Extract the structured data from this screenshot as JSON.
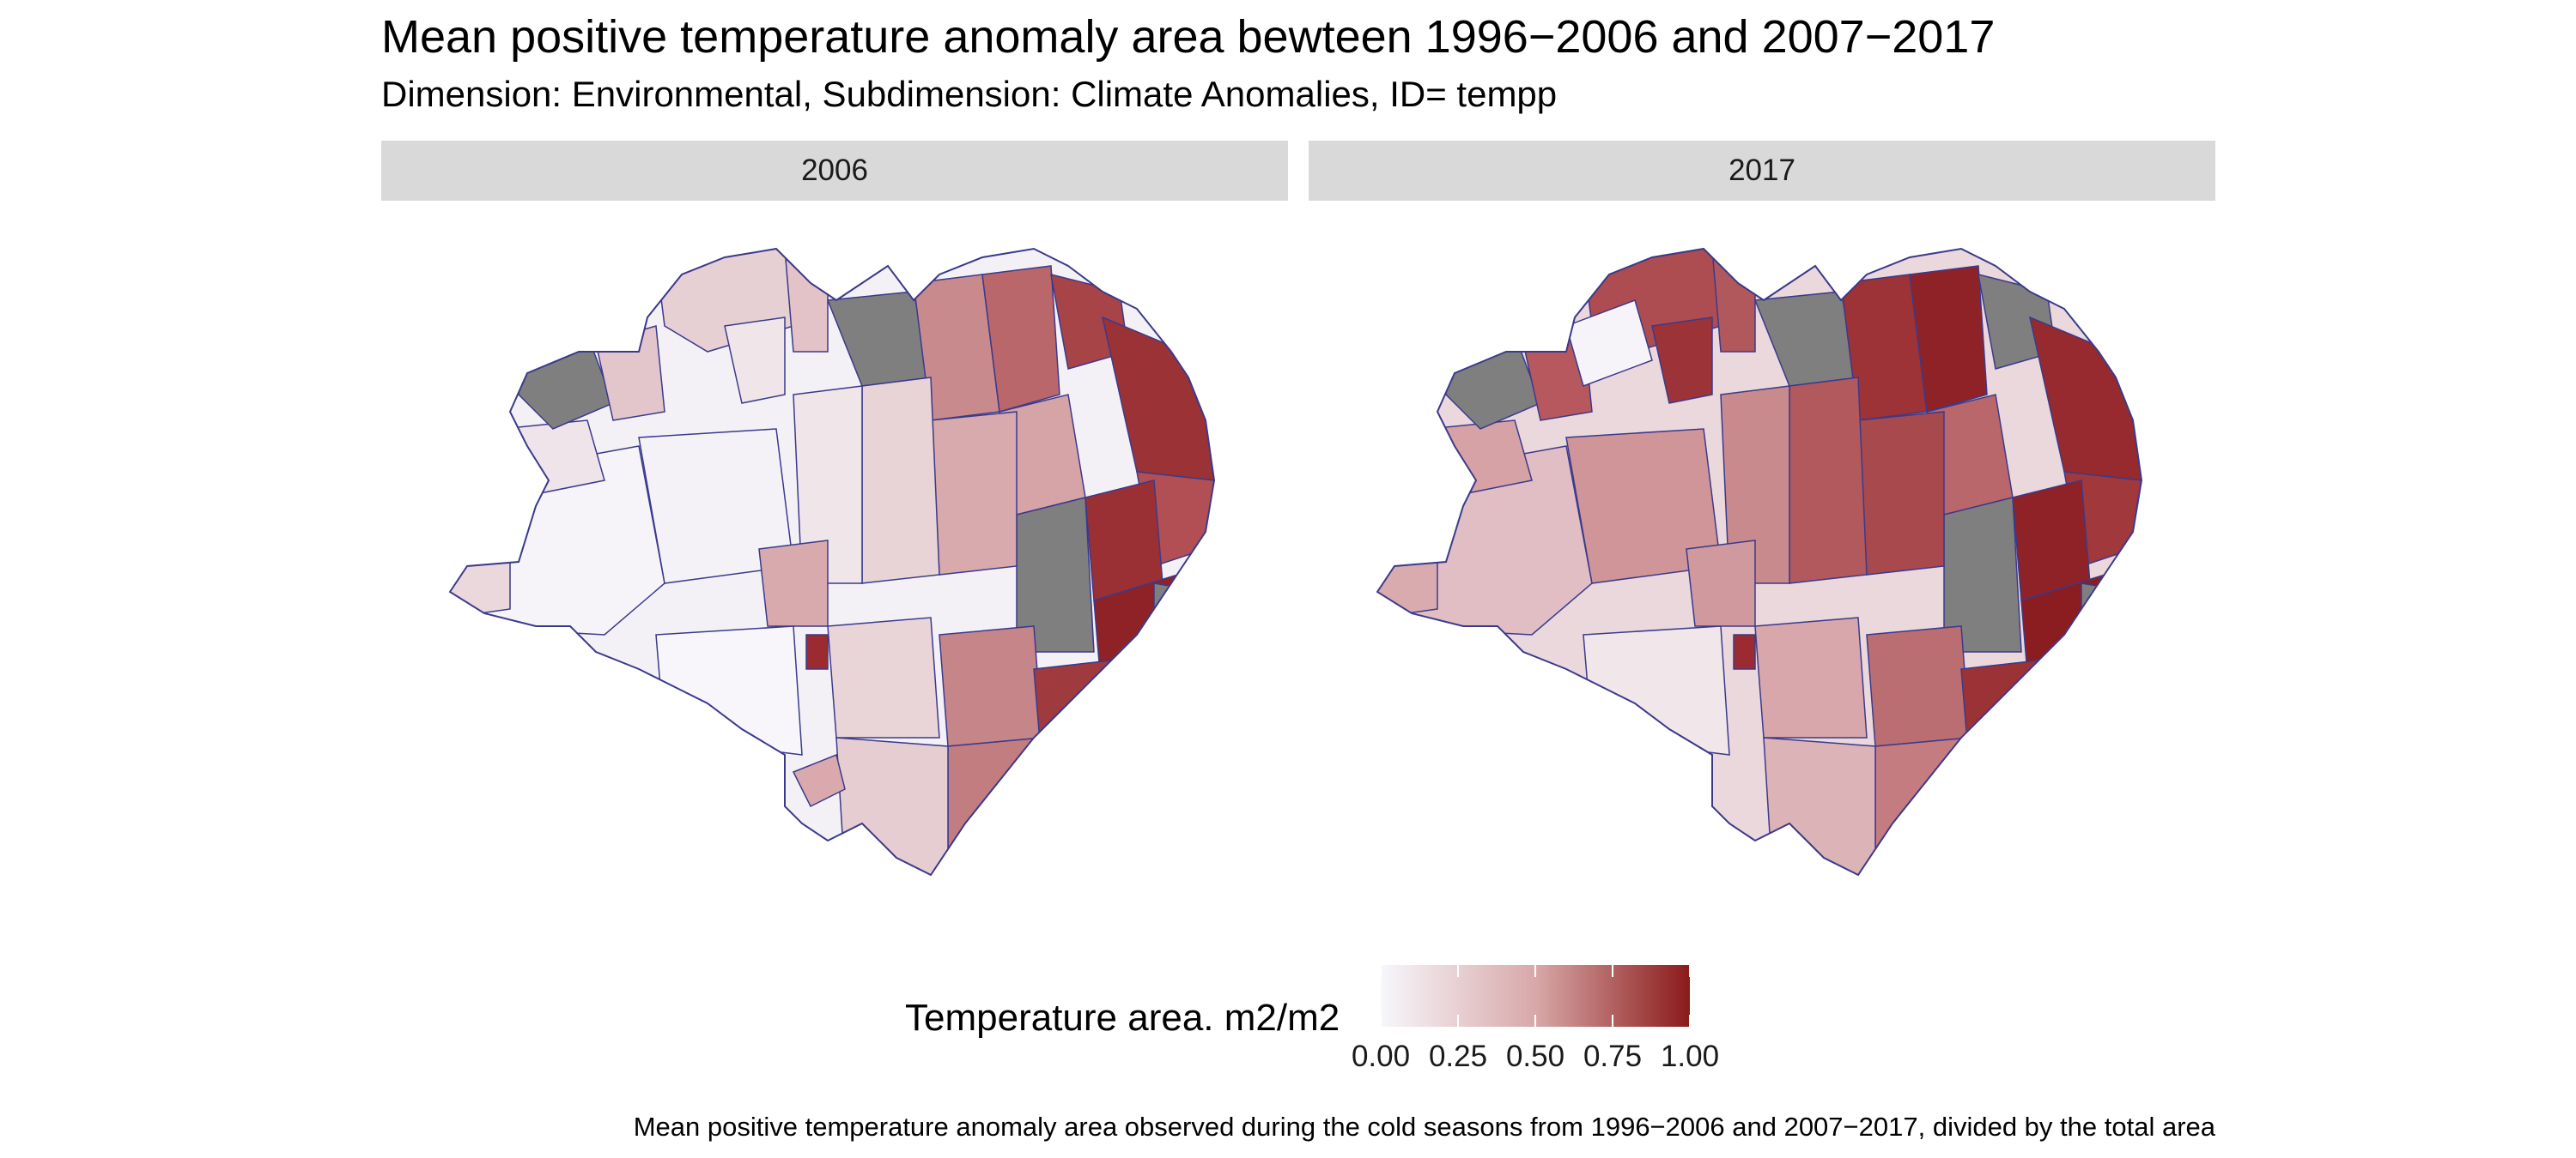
{
  "header": {
    "title": "Mean positive temperature anomaly area bewteen 1996−2006 and 2007−2017",
    "subtitle": "Dimension: Environmental, Subdimension: Climate Anomalies, ID= tempp"
  },
  "facets": [
    {
      "label": "2006"
    },
    {
      "label": "2017"
    }
  ],
  "legend": {
    "title": "Temperature area. m2/m2",
    "ticks": [
      "0.00",
      "0.25",
      "0.50",
      "0.75",
      "1.00"
    ],
    "tick_values": [
      0,
      0.25,
      0.5,
      0.75,
      1.0
    ],
    "colors": {
      "low": "#f7f7fc",
      "mid": "#d8a8a8",
      "high": "#8b1a1a",
      "missing": "#7f7f7f",
      "border": "#3a3a8c"
    }
  },
  "caption": "Mean positive temperature anomaly area observed during the cold seasons from 1996−2006 and 2007−2017, divided by the total area"
}
